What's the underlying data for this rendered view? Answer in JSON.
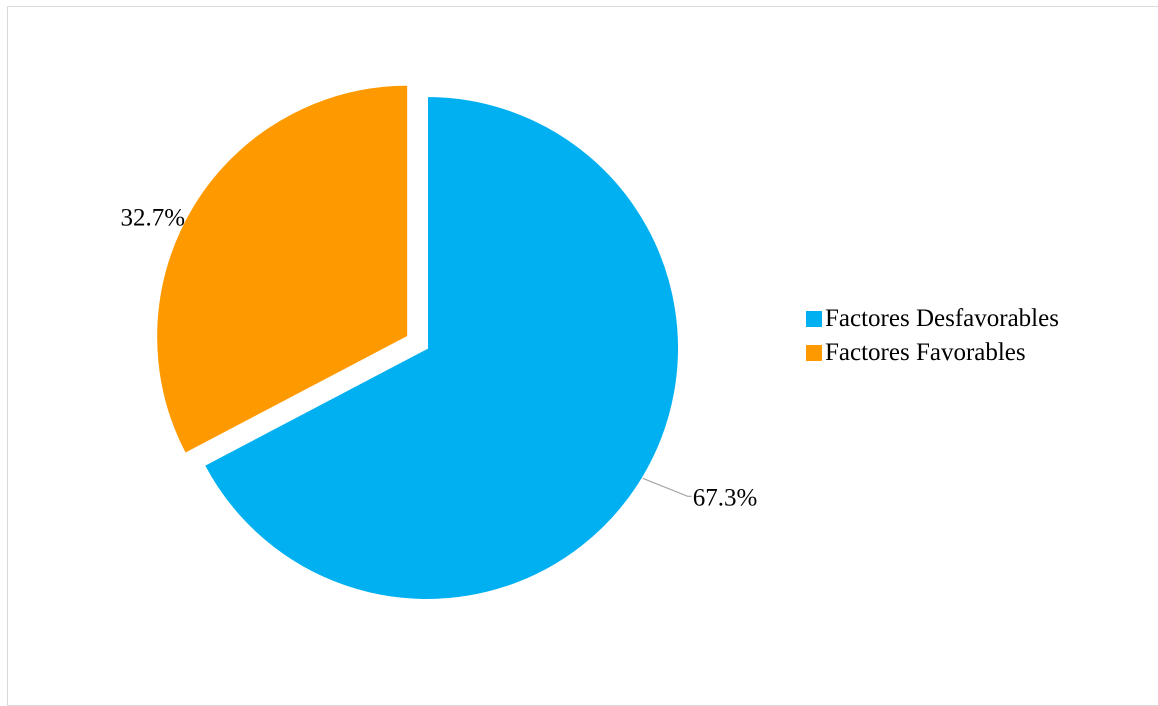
{
  "chart_data": {
    "type": "pie",
    "categories": [
      "Factores Desfavorables",
      "Factores Favorables"
    ],
    "values": [
      67.3,
      32.7
    ],
    "labels": [
      "67.3%",
      "32.7%"
    ],
    "colors": [
      "#00b0f0",
      "#ff9900"
    ],
    "exploded": [
      false,
      true
    ],
    "legend_position": "right"
  },
  "legend": {
    "items": [
      {
        "label": "Factores Desfavorables",
        "color": "#00b0f0"
      },
      {
        "label": "Factores Favorables",
        "color": "#ff9900"
      }
    ]
  }
}
